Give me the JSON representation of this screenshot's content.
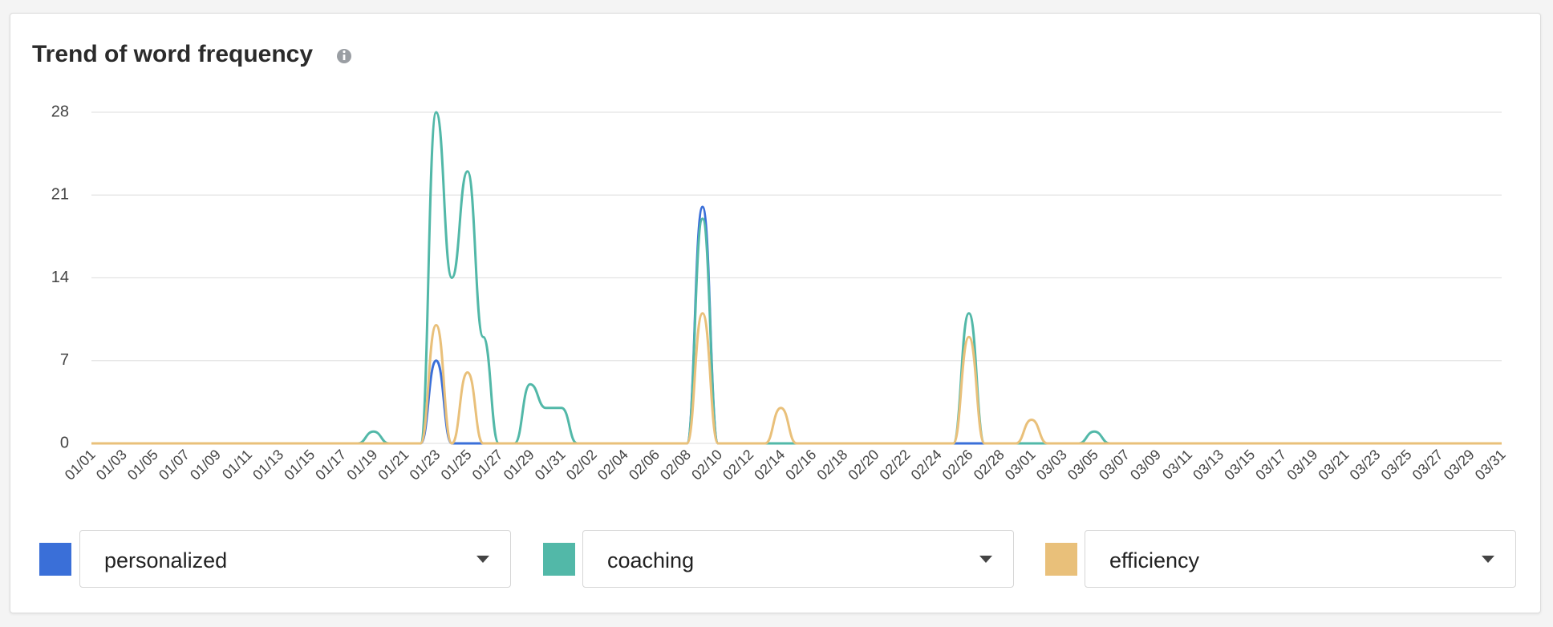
{
  "chart_data": {
    "type": "line",
    "title": "Trend of word frequency",
    "categories": [
      "01/01",
      null,
      "01/03",
      null,
      "01/05",
      null,
      "01/07",
      null,
      "01/09",
      null,
      "01/11",
      null,
      "01/13",
      null,
      "01/15",
      null,
      "01/17",
      null,
      "01/19",
      null,
      "01/21",
      null,
      "01/23",
      null,
      "01/25",
      null,
      "01/27",
      null,
      "01/29",
      null,
      "01/31",
      null,
      "02/02",
      null,
      "02/04",
      null,
      "02/06",
      null,
      "02/08",
      null,
      "02/10",
      null,
      "02/12",
      null,
      "02/14",
      null,
      "02/16",
      null,
      "02/18",
      null,
      "02/20",
      null,
      "02/22",
      null,
      "02/24",
      null,
      "02/26",
      null,
      "02/28",
      null,
      "03/01",
      null,
      "03/03",
      null,
      "03/05",
      null,
      "03/07",
      null,
      "03/09",
      null,
      "03/11",
      null,
      "03/13",
      null,
      "03/15",
      null,
      "03/17",
      null,
      "03/19",
      null,
      "03/21",
      null,
      "03/23",
      null,
      "03/25",
      null,
      "03/27",
      null,
      "03/29",
      null,
      "03/31"
    ],
    "series": [
      {
        "name": "personalized",
        "color": "#3a6fd8",
        "values": [
          0,
          0,
          0,
          0,
          0,
          0,
          0,
          0,
          0,
          0,
          0,
          0,
          0,
          0,
          0,
          0,
          0,
          0,
          0,
          0,
          0,
          0,
          7,
          0,
          0,
          0,
          0,
          0,
          0,
          0,
          0,
          0,
          0,
          0,
          0,
          0,
          0,
          0,
          0,
          20,
          0,
          0,
          0,
          0,
          0,
          0,
          0,
          0,
          0,
          0,
          0,
          0,
          0,
          0,
          0,
          0,
          0,
          0,
          0,
          0,
          0,
          0,
          0,
          0,
          0,
          0,
          0,
          0,
          0,
          0,
          0,
          0,
          0,
          0,
          0,
          0,
          0,
          0,
          0,
          0,
          0,
          0,
          0,
          0,
          0,
          0,
          0,
          0,
          0,
          0,
          0
        ]
      },
      {
        "name": "coaching",
        "color": "#52b8a8",
        "values": [
          0,
          0,
          0,
          0,
          0,
          0,
          0,
          0,
          0,
          0,
          0,
          0,
          0,
          0,
          0,
          0,
          0,
          0,
          1,
          0,
          0,
          0,
          28,
          14,
          23,
          9,
          0,
          0,
          5,
          3,
          3,
          0,
          0,
          0,
          0,
          0,
          0,
          0,
          0,
          19,
          0,
          0,
          0,
          0,
          0,
          0,
          0,
          0,
          0,
          0,
          0,
          0,
          0,
          0,
          0,
          0,
          11,
          0,
          0,
          0,
          0,
          0,
          0,
          0,
          1,
          0,
          0,
          0,
          0,
          0,
          0,
          0,
          0,
          0,
          0,
          0,
          0,
          0,
          0,
          0,
          0,
          0,
          0,
          0,
          0,
          0,
          0,
          0,
          0,
          0,
          0
        ]
      },
      {
        "name": "efficiency",
        "color": "#e9c07a",
        "values": [
          0,
          0,
          0,
          0,
          0,
          0,
          0,
          0,
          0,
          0,
          0,
          0,
          0,
          0,
          0,
          0,
          0,
          0,
          0,
          0,
          0,
          0,
          10,
          0,
          6,
          0,
          0,
          0,
          0,
          0,
          0,
          0,
          0,
          0,
          0,
          0,
          0,
          0,
          0,
          11,
          0,
          0,
          0,
          0,
          3,
          0,
          0,
          0,
          0,
          0,
          0,
          0,
          0,
          0,
          0,
          0,
          9,
          0,
          0,
          0,
          2,
          0,
          0,
          0,
          0,
          0,
          0,
          0,
          0,
          0,
          0,
          0,
          0,
          0,
          0,
          0,
          0,
          0,
          0,
          0,
          0,
          0,
          0,
          0,
          0,
          0,
          0,
          0,
          0,
          0,
          0
        ]
      }
    ],
    "ylim": [
      0,
      28
    ],
    "yticks": [
      0,
      7,
      14,
      21,
      28
    ],
    "grid": true
  }
}
